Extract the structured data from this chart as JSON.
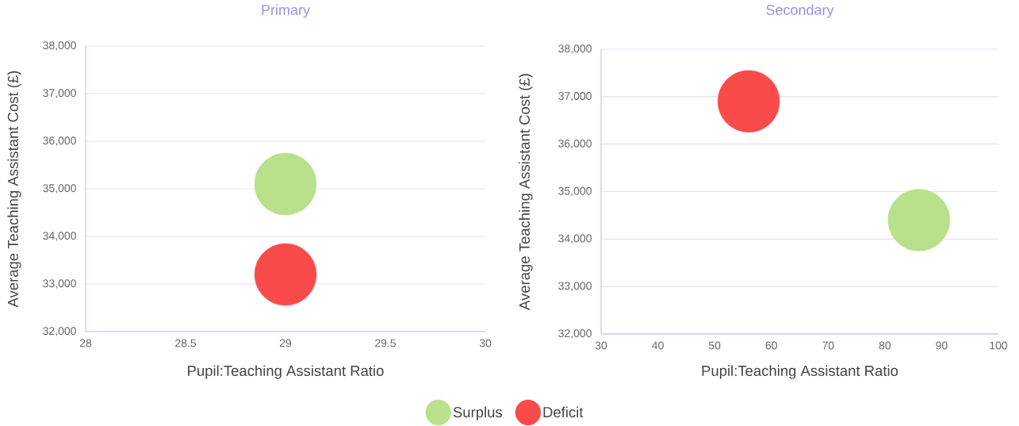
{
  "chart_data": [
    {
      "type": "bubble",
      "title": "Primary",
      "xlabel": "Pupil:Teaching Assistant Ratio",
      "ylabel": "Average Teaching Assistant Cost (£)",
      "xlim": [
        28,
        30
      ],
      "ylim": [
        32000,
        38000
      ],
      "xticks": [
        28,
        28.5,
        29,
        29.5,
        30
      ],
      "yticks": [
        {
          "value": 32000,
          "label": "32,000"
        },
        {
          "value": 33000,
          "label": "33,000"
        },
        {
          "value": 34000,
          "label": "34,000"
        },
        {
          "value": 35000,
          "label": "35,000"
        },
        {
          "value": 36000,
          "label": "36,000"
        },
        {
          "value": 37000,
          "label": "37,000"
        },
        {
          "value": 38000,
          "label": "38,000"
        }
      ],
      "grid": "y",
      "legend": "bottom",
      "series": [
        {
          "name": "Surplus",
          "color": "#b9e08b",
          "x": [
            29
          ],
          "values": [
            35100
          ],
          "sizes": [
            1
          ]
        },
        {
          "name": "Deficit",
          "color": "#fa4b4b",
          "x": [
            29
          ],
          "values": [
            33200
          ],
          "sizes": [
            1
          ]
        }
      ]
    },
    {
      "type": "bubble",
      "title": "Secondary",
      "xlabel": "Pupil:Teaching Assistant Ratio",
      "ylabel": "Average Teaching Assistant Cost (£)",
      "xlim": [
        30,
        100
      ],
      "ylim": [
        32000,
        38000
      ],
      "xticks": [
        30,
        40,
        50,
        60,
        70,
        80,
        90,
        100
      ],
      "yticks": [
        {
          "value": 32000,
          "label": "32,000"
        },
        {
          "value": 33000,
          "label": "33,000"
        },
        {
          "value": 34000,
          "label": "34,000"
        },
        {
          "value": 35000,
          "label": "35,000"
        },
        {
          "value": 36000,
          "label": "36,000"
        },
        {
          "value": 37000,
          "label": "37,000"
        },
        {
          "value": 38000,
          "label": "38,000"
        }
      ],
      "grid": "y",
      "series": [
        {
          "color": "#b9e08b",
          "x": [
            86
          ],
          "values": [
            34400
          ],
          "sizes": [
            1
          ]
        },
        {
          "color": "#fa4b4b",
          "x": [
            56
          ],
          "values": [
            36900
          ],
          "sizes": [
            1
          ]
        }
      ]
    }
  ]
}
